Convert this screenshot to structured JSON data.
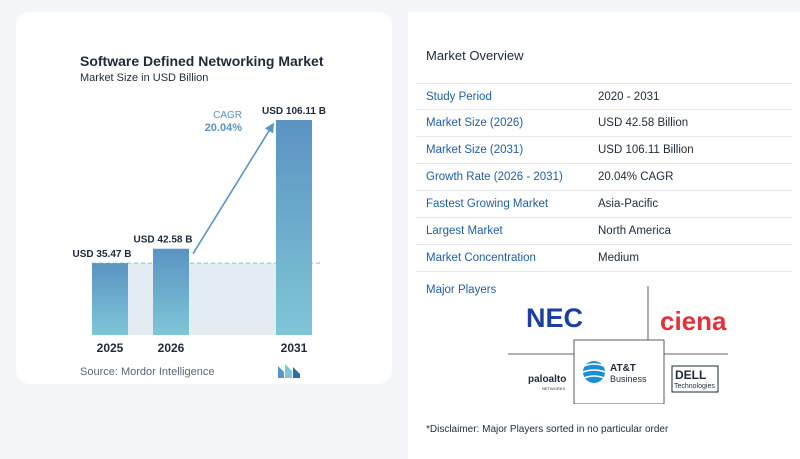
{
  "chart_data": {
    "type": "bar",
    "title": "Software Defined Networking Market",
    "subtitle": "Market Size in USD Billion",
    "categories": [
      "2025",
      "2026",
      "2031"
    ],
    "values": [
      35.47,
      42.58,
      106.11
    ],
    "value_labels": [
      "USD 35.47 B",
      "USD 42.58 B",
      "USD 106.11 B"
    ],
    "cagr_label": "CAGR",
    "cagr_value": "20.04%",
    "source": "Source:  Mordor Intelligence",
    "colors": {
      "bar_top": "#5b93c2",
      "bar_bottom": "#7fc6d6",
      "baseline_band": "#e3ecf3",
      "dashed_line": "#7fc6d6",
      "arrow": "#5b93c2",
      "cagr": "#5b93c2"
    }
  },
  "overview": {
    "title": "Market Overview",
    "rows": [
      {
        "label": "Study Period",
        "value": "2020 - 2031"
      },
      {
        "label": "Market Size (2026)",
        "value": "USD 42.58 Billion"
      },
      {
        "label": "Market Size (2031)",
        "value": "USD 106.11 Billion"
      },
      {
        "label": "Growth Rate (2026 - 2031)",
        "value": "20.04% CAGR"
      },
      {
        "label": "Fastest Growing Market",
        "value": "Asia-Pacific"
      },
      {
        "label": "Largest Market",
        "value": "North America"
      },
      {
        "label": "Market Concentration",
        "value": "Medium"
      }
    ],
    "major_players_title": "Major Players",
    "players": {
      "nec": "NEC",
      "ciena": "ciena",
      "att_1": "AT&T",
      "att_2": "Business",
      "paloalto_1": "paloalto",
      "paloalto_2": "NETWORKS",
      "dell_1": "DELL",
      "dell_2": "Technologies"
    },
    "disclaimer": "*Disclaimer: Major Players sorted in no particular order"
  }
}
